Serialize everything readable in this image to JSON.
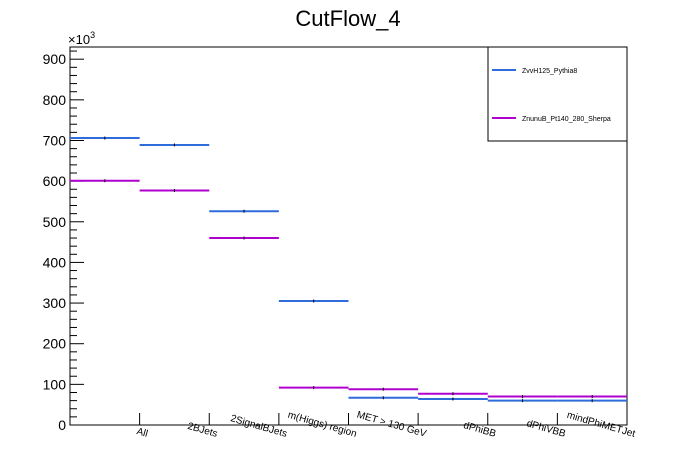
{
  "chart_data": {
    "type": "line",
    "title": "CutFlow_4",
    "y_multiplier": "×10",
    "y_multiplier_exp": "3",
    "categories": [
      "All",
      "2BJets",
      "2SignalBJets",
      "m(Higgs) region",
      "MET > 130 GeV",
      "dPhiBB",
      "dPhiVBB",
      "mindPhiMETJet"
    ],
    "yticks": [
      "0",
      "100",
      "200",
      "300",
      "400",
      "500",
      "600",
      "700",
      "800",
      "900"
    ],
    "ylim": [
      0,
      930
    ],
    "legend_position": "top-right",
    "grid": false,
    "series": [
      {
        "name": "ZvvH125_Pythia8",
        "color": "#2e6bdb",
        "values": [
          706,
          689,
          526,
          305,
          67,
          64,
          60,
          60
        ]
      },
      {
        "name": "ZnunuB_Pt140_280_Sherpa",
        "color": "#b000d0",
        "values": [
          601,
          577,
          460,
          92,
          88,
          77,
          70,
          70
        ]
      }
    ]
  }
}
